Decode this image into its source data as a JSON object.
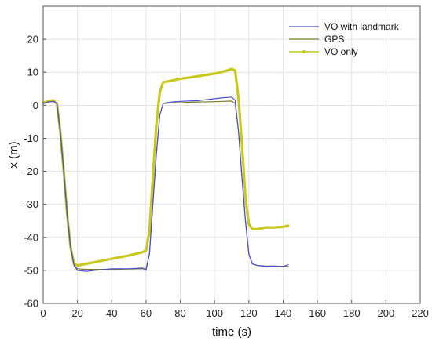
{
  "chart_data": {
    "type": "line",
    "xlabel": "time (s)",
    "ylabel": "x (m)",
    "xlim": [
      0,
      220
    ],
    "ylim": [
      -60,
      30
    ],
    "xticks": [
      0,
      20,
      40,
      60,
      80,
      100,
      120,
      140,
      160,
      180,
      200,
      220
    ],
    "yticks": [
      -60,
      -50,
      -40,
      -30,
      -20,
      -10,
      0,
      10,
      20
    ],
    "grid": true,
    "legend_position": "top-right",
    "series": [
      {
        "name": "VO with landmark",
        "color": "#4a4fd1",
        "x": [
          0,
          3,
          6,
          8,
          10,
          12,
          14,
          16,
          18,
          20,
          25,
          30,
          40,
          50,
          58,
          60,
          62,
          64,
          66,
          68,
          70,
          72,
          75,
          80,
          90,
          100,
          105,
          110,
          112,
          114,
          116,
          118,
          120,
          122,
          125,
          130,
          135,
          140,
          143
        ],
        "y": [
          0.5,
          1,
          1.2,
          0.5,
          -8,
          -20,
          -33,
          -43,
          -48.5,
          -50,
          -50.3,
          -50,
          -49.5,
          -49.5,
          -49.3,
          -50,
          -45,
          -30,
          -15,
          -3,
          0.5,
          0.8,
          1,
          1.2,
          1.4,
          2,
          2.3,
          2.5,
          1.5,
          -8,
          -22,
          -35,
          -45,
          -48,
          -48.5,
          -48.8,
          -48.7,
          -48.8,
          -48.3
        ]
      },
      {
        "name": "GPS",
        "color": "#7a7a2a",
        "x": [
          0,
          3,
          6,
          8,
          10,
          12,
          14,
          16,
          18,
          20,
          25,
          30,
          40,
          50,
          58,
          60,
          62,
          64,
          66,
          68,
          70,
          72,
          75,
          80,
          90,
          100,
          105,
          110,
          112,
          114,
          116,
          118,
          120,
          122,
          125,
          130,
          135,
          140,
          143
        ],
        "y": [
          0.5,
          1,
          1.2,
          0.5,
          -8,
          -20,
          -33,
          -43,
          -48.5,
          -49.5,
          -49.7,
          -49.7,
          -49.7,
          -49.6,
          -49.5,
          -49.5,
          -45,
          -30,
          -15,
          -3,
          0.5,
          0.6,
          0.7,
          0.8,
          1,
          1.1,
          1.2,
          1.3,
          0.5,
          -8,
          -22,
          -35,
          -45,
          -48,
          -48.5,
          -48.7,
          -48.7,
          -48.8,
          -48.8
        ]
      },
      {
        "name": "VO only",
        "color": "#c8c81e",
        "x": [
          0,
          3,
          6,
          8,
          10,
          12,
          14,
          16,
          18,
          20,
          25,
          30,
          40,
          50,
          58,
          60,
          62,
          64,
          66,
          68,
          70,
          75,
          80,
          90,
          100,
          105,
          110,
          112,
          114,
          116,
          118,
          120,
          122,
          125,
          130,
          135,
          140,
          143
        ],
        "y": [
          0.8,
          1.2,
          1.5,
          0.5,
          -8,
          -20,
          -33,
          -43,
          -48,
          -48.5,
          -48,
          -47.5,
          -46.5,
          -45.5,
          -44.5,
          -44,
          -38,
          -22,
          -6,
          4,
          7,
          7.5,
          8,
          8.8,
          9.6,
          10.2,
          11,
          10.5,
          2,
          -12,
          -28,
          -36,
          -37.5,
          -37.5,
          -37,
          -37,
          -36.8,
          -36.5
        ]
      }
    ]
  }
}
